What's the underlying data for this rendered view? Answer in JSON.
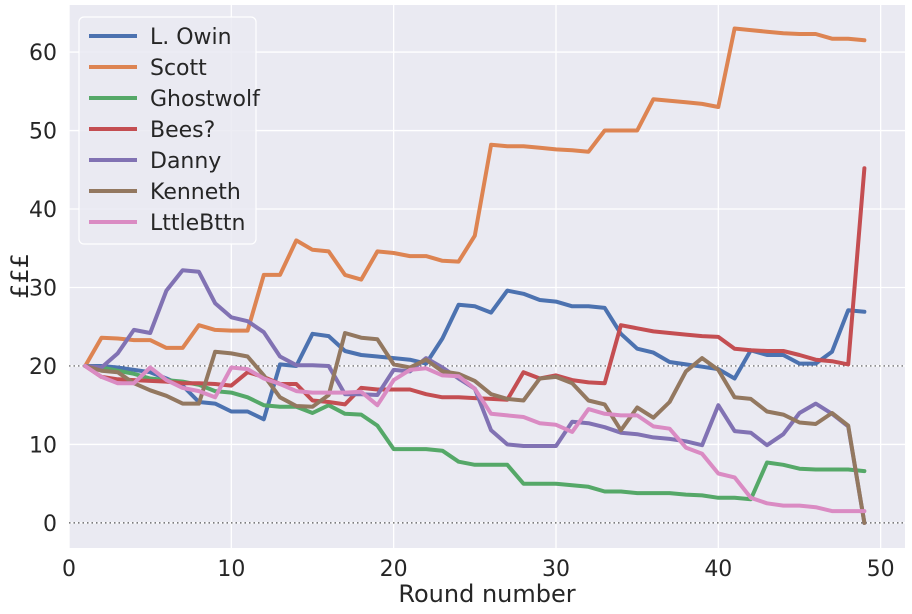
{
  "chart_data": {
    "type": "line",
    "xlabel": "Round number",
    "ylabel": "£££",
    "xlim": [
      0,
      51.5
    ],
    "ylim": [
      -3.2,
      66
    ],
    "xticks": [
      0,
      10,
      20,
      30,
      40,
      50
    ],
    "yticks": [
      0,
      10,
      20,
      30,
      40,
      50,
      60
    ],
    "reference_lines": [
      0,
      20
    ],
    "grid": true,
    "legend_position": "top-left",
    "colors": {
      "background": "#eaeaf2",
      "grid": "#ffffff",
      "text": "#262626",
      "reference_line": "#555555"
    },
    "x": [
      1,
      2,
      3,
      4,
      5,
      6,
      7,
      8,
      9,
      10,
      11,
      12,
      13,
      14,
      15,
      16,
      17,
      18,
      19,
      20,
      21,
      22,
      23,
      24,
      25,
      26,
      27,
      28,
      29,
      30,
      31,
      32,
      33,
      34,
      35,
      36,
      37,
      38,
      39,
      40,
      41,
      42,
      43,
      44,
      45,
      46,
      47,
      48,
      49
    ],
    "series": [
      {
        "name": "L. Owin",
        "color": "#4c72b0",
        "values": [
          20,
          20,
          19.8,
          19.5,
          19.2,
          18.4,
          17.5,
          15.4,
          15.2,
          14.2,
          14.2,
          13.2,
          20.2,
          20,
          24.1,
          23.8,
          21.9,
          21.4,
          21.2,
          21,
          20.8,
          20.3,
          23.5,
          27.8,
          27.6,
          26.8,
          29.6,
          29.2,
          28.4,
          28.2,
          27.6,
          27.6,
          27.4,
          24.1,
          22.2,
          21.7,
          20.5,
          20.2,
          19.9,
          19.6,
          18.4,
          22,
          21.4,
          21.4,
          20.3,
          20.3,
          21.8,
          27.1,
          26.9
        ]
      },
      {
        "name": "Scott",
        "color": "#dd8452",
        "values": [
          20,
          23.6,
          23.5,
          23.3,
          23.3,
          22.3,
          22.3,
          25.2,
          24.6,
          24.5,
          24.5,
          31.6,
          31.6,
          36,
          34.8,
          34.6,
          31.6,
          31,
          34.6,
          34.4,
          34,
          34,
          33.4,
          33.3,
          36.6,
          48.2,
          48,
          48,
          47.8,
          47.6,
          47.5,
          47.3,
          50,
          50,
          50,
          54,
          53.8,
          53.6,
          53.4,
          53,
          63,
          62.8,
          62.6,
          62.4,
          62.3,
          62.3,
          61.7,
          61.7,
          61.5
        ]
      },
      {
        "name": "Ghostwolf",
        "color": "#55a868",
        "values": [
          20,
          19.8,
          19.4,
          19,
          18.4,
          18.2,
          18,
          17.6,
          16.8,
          16.6,
          16,
          15,
          14.8,
          14.8,
          14,
          15,
          13.9,
          13.8,
          12.4,
          9.4,
          9.4,
          9.4,
          9.2,
          7.8,
          7.4,
          7.4,
          7.4,
          5,
          5,
          5,
          4.8,
          4.6,
          4,
          4,
          3.8,
          3.8,
          3.8,
          3.6,
          3.5,
          3.2,
          3.2,
          3,
          7.7,
          7.4,
          6.9,
          6.8,
          6.8,
          6.8,
          6.6
        ]
      },
      {
        "name": "Bees?",
        "color": "#c44e52",
        "values": [
          20,
          18.6,
          18.3,
          18.2,
          18.1,
          18,
          17.8,
          17.8,
          17.7,
          17.5,
          19.2,
          18.6,
          17.7,
          17.7,
          15.6,
          15.4,
          15.1,
          17.2,
          17,
          17,
          17,
          16.4,
          16,
          16,
          15.9,
          15.8,
          15.7,
          19.2,
          18.4,
          18.8,
          18.2,
          17.9,
          17.8,
          25.2,
          24.8,
          24.4,
          24.2,
          24,
          23.8,
          23.7,
          22.2,
          22,
          21.9,
          21.9,
          21.4,
          20.8,
          20.6,
          20.2,
          45.2
        ]
      },
      {
        "name": "Danny",
        "color": "#8172b3",
        "values": [
          20,
          19.8,
          21.6,
          24.6,
          24.2,
          29.6,
          32.2,
          32,
          28,
          26.2,
          25.7,
          24.3,
          21.2,
          20.1,
          20.1,
          20,
          16.4,
          16.4,
          16.3,
          19.5,
          19.3,
          21,
          19.8,
          18.4,
          17.1,
          11.8,
          10,
          9.8,
          9.8,
          9.8,
          12.9,
          12.7,
          12.2,
          11.5,
          11.3,
          10.9,
          10.7,
          10.4,
          9.9,
          15,
          11.7,
          11.5,
          9.9,
          11.3,
          14,
          15.2,
          13.9,
          12.3,
          0
        ]
      },
      {
        "name": "Kenneth",
        "color": "#937860",
        "values": [
          20,
          19.4,
          19.2,
          17.8,
          16.9,
          16.2,
          15.2,
          15.2,
          21.8,
          21.6,
          21.2,
          18.8,
          16,
          14.9,
          14.8,
          16.3,
          24.2,
          23.6,
          23.4,
          20.2,
          19.8,
          20.8,
          19.3,
          19,
          18.1,
          16.4,
          15.8,
          15.6,
          18.4,
          18.6,
          17.8,
          15.6,
          15.1,
          11.8,
          14.7,
          13.4,
          15.4,
          19.3,
          21,
          19.5,
          16,
          15.8,
          14.2,
          13.8,
          12.8,
          12.6,
          14,
          12.4,
          0
        ]
      },
      {
        "name": "LttleBttn",
        "color": "#da8bc3",
        "values": [
          20,
          18.6,
          17.8,
          17.8,
          19.8,
          18.2,
          17.2,
          16.8,
          16,
          19.8,
          19.6,
          18.4,
          17.7,
          16.8,
          16.6,
          16.6,
          16.6,
          16.7,
          15,
          18.2,
          19.5,
          19.7,
          18.8,
          18.7,
          17.1,
          13.9,
          13.7,
          13.5,
          12.7,
          12.5,
          11.6,
          14.5,
          13.9,
          13.7,
          13.7,
          12.3,
          12,
          9.6,
          8.8,
          6.3,
          5.8,
          3.2,
          2.5,
          2.2,
          2.2,
          2,
          1.5,
          1.5,
          1.5
        ]
      }
    ]
  }
}
